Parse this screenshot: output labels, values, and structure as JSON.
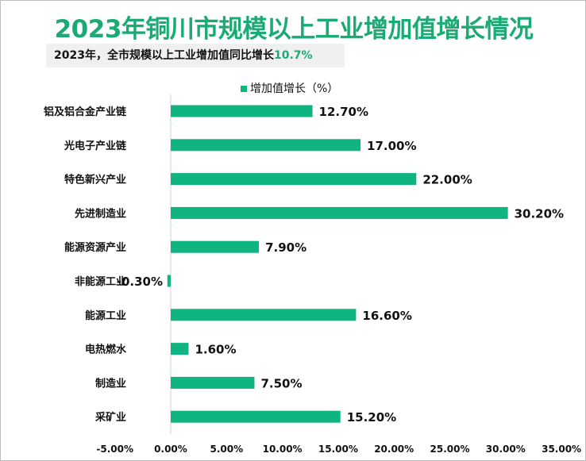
{
  "title": "2023年铜川市规模以上工业增加值增长情况",
  "subtitle": {
    "text": "2023年，全市规模以上工业增加值同比增长",
    "highlight": "10.7%"
  },
  "colors": {
    "bar": "#10b481",
    "title": "#1aaa74"
  },
  "chart_data": {
    "type": "bar",
    "orientation": "horizontal",
    "categories": [
      "铝及铝合金产业链",
      "光电子产业链",
      "特色新兴产业",
      "先进制造业",
      "能源资源产业",
      "非能源工业",
      "能源工业",
      "电热燃水",
      "制造业",
      "采矿业"
    ],
    "series": [
      {
        "name": "增加值增长（%）",
        "values": [
          12.7,
          17.0,
          22.0,
          30.2,
          7.9,
          -0.3,
          16.6,
          1.6,
          7.5,
          15.2
        ]
      }
    ],
    "data_labels": [
      "12.70%",
      "17.00%",
      "22.00%",
      "30.20%",
      "7.90%",
      "-0.30%",
      "16.60%",
      "1.60%",
      "7.50%",
      "15.20%"
    ],
    "xlim": [
      -5,
      35
    ],
    "xticks": [
      "-5.00%",
      "0.00%",
      "5.00%",
      "10.00%",
      "15.00%",
      "20.00%",
      "25.00%",
      "30.00%",
      "35.00%"
    ],
    "grid": false,
    "legend": "top"
  }
}
